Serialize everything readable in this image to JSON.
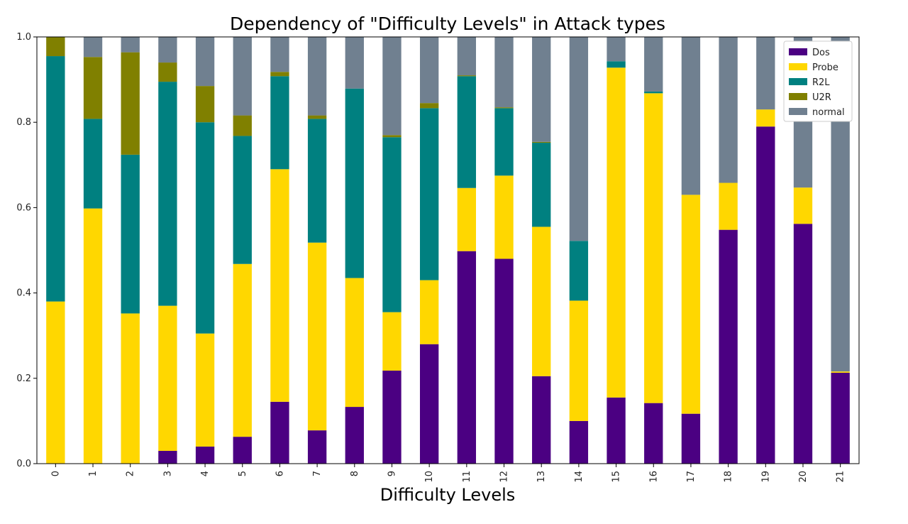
{
  "chart_data": {
    "type": "bar",
    "stacked": true,
    "title": "Dependency of \"Difficulty Levels\" in Attack types",
    "xlabel": "Difficulty Levels",
    "ylabel": "",
    "ylim": [
      0,
      1.0
    ],
    "yticks": [
      "0.0",
      "0.2",
      "0.4",
      "0.6",
      "0.8",
      "1.0"
    ],
    "grid": false,
    "legend_position": "top-right",
    "categories": [
      "0",
      "1",
      "2",
      "3",
      "4",
      "5",
      "6",
      "7",
      "8",
      "9",
      "10",
      "11",
      "12",
      "13",
      "14",
      "15",
      "16",
      "17",
      "18",
      "19",
      "20",
      "21"
    ],
    "series": [
      {
        "name": "Dos",
        "color": "#4b0082",
        "values": [
          0.0,
          0.0,
          0.0,
          0.03,
          0.04,
          0.063,
          0.145,
          0.078,
          0.133,
          0.218,
          0.28,
          0.498,
          0.48,
          0.205,
          0.1,
          0.155,
          0.142,
          0.117,
          0.548,
          0.79,
          0.562,
          0.213
        ]
      },
      {
        "name": "Probe",
        "color": "#ffd700",
        "values": [
          0.38,
          0.598,
          0.352,
          0.34,
          0.265,
          0.405,
          0.545,
          0.44,
          0.302,
          0.137,
          0.15,
          0.148,
          0.195,
          0.35,
          0.282,
          0.773,
          0.726,
          0.513,
          0.11,
          0.04,
          0.085,
          0.003
        ]
      },
      {
        "name": "R2L",
        "color": "#008080",
        "values": [
          0.575,
          0.21,
          0.372,
          0.525,
          0.495,
          0.3,
          0.218,
          0.29,
          0.444,
          0.41,
          0.403,
          0.262,
          0.158,
          0.197,
          0.14,
          0.015,
          0.004,
          0.0,
          0.0,
          0.0,
          0.0,
          0.0
        ]
      },
      {
        "name": "U2R",
        "color": "#808000",
        "values": [
          0.045,
          0.145,
          0.24,
          0.045,
          0.085,
          0.048,
          0.01,
          0.008,
          0.0,
          0.005,
          0.012,
          0.002,
          0.002,
          0.002,
          0.0,
          0.0,
          0.0,
          0.0,
          0.0,
          0.0,
          0.0,
          0.0
        ]
      },
      {
        "name": "normal",
        "color": "#708090",
        "values": [
          0.0,
          0.047,
          0.036,
          0.06,
          0.115,
          0.184,
          0.082,
          0.184,
          0.121,
          0.23,
          0.155,
          0.09,
          0.165,
          0.246,
          0.478,
          0.057,
          0.128,
          0.37,
          0.342,
          0.17,
          0.353,
          0.784
        ]
      }
    ]
  }
}
